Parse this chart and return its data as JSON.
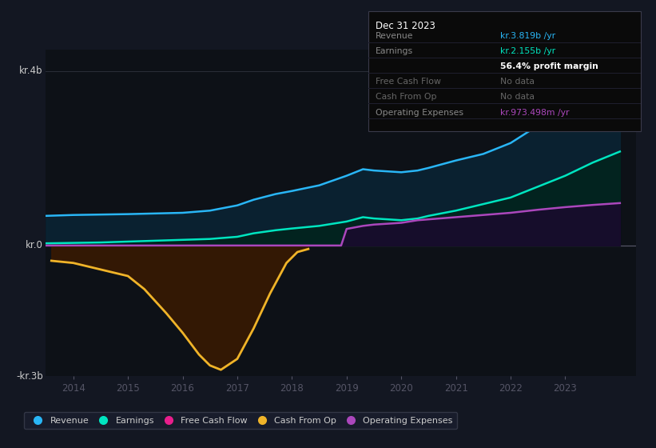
{
  "bg_color": "#131722",
  "plot_bg": "#0d1117",
  "grid_color": "#2a2e39",
  "ylim": [
    -3000000000.0,
    4500000000.0
  ],
  "xlim": [
    2013.5,
    2024.3
  ],
  "xticks": [
    2014,
    2015,
    2016,
    2017,
    2018,
    2019,
    2020,
    2021,
    2022,
    2023
  ],
  "revenue": {
    "years": [
      2013.5,
      2014.0,
      2014.5,
      2015.0,
      2015.5,
      2016.0,
      2016.5,
      2017.0,
      2017.3,
      2017.7,
      2018.0,
      2018.5,
      2019.0,
      2019.3,
      2019.5,
      2020.0,
      2020.3,
      2020.5,
      2021.0,
      2021.5,
      2022.0,
      2022.5,
      2023.0,
      2023.5,
      2024.0
    ],
    "values": [
      680000000.0,
      700000000.0,
      710000000.0,
      720000000.0,
      735000000.0,
      750000000.0,
      800000000.0,
      920000000.0,
      1050000000.0,
      1180000000.0,
      1250000000.0,
      1380000000.0,
      1600000000.0,
      1750000000.0,
      1720000000.0,
      1680000000.0,
      1720000000.0,
      1780000000.0,
      1950000000.0,
      2100000000.0,
      2350000000.0,
      2750000000.0,
      3100000000.0,
      3600000000.0,
      3819000000.0
    ],
    "color": "#29b6f6",
    "fill_color": "#0a2535",
    "fill_alpha": 0.85,
    "lw": 1.8
  },
  "earnings": {
    "years": [
      2013.5,
      2014.0,
      2014.5,
      2015.0,
      2015.5,
      2016.0,
      2016.5,
      2017.0,
      2017.3,
      2017.7,
      2018.0,
      2018.5,
      2019.0,
      2019.3,
      2019.5,
      2020.0,
      2020.3,
      2020.5,
      2021.0,
      2021.5,
      2022.0,
      2022.5,
      2023.0,
      2023.5,
      2024.0
    ],
    "values": [
      50000000.0,
      60000000.0,
      70000000.0,
      90000000.0,
      110000000.0,
      130000000.0,
      150000000.0,
      200000000.0,
      280000000.0,
      350000000.0,
      390000000.0,
      450000000.0,
      550000000.0,
      650000000.0,
      620000000.0,
      580000000.0,
      620000000.0,
      680000000.0,
      800000000.0,
      950000000.0,
      1100000000.0,
      1350000000.0,
      1600000000.0,
      1900000000.0,
      2155000000.0
    ],
    "color": "#00e5c0",
    "fill_color": "#00251a",
    "fill_alpha": 0.75,
    "lw": 1.8
  },
  "cashfromop": {
    "years": [
      2013.6,
      2014.0,
      2014.5,
      2015.0,
      2015.3,
      2015.7,
      2016.0,
      2016.3,
      2016.5,
      2016.7,
      2017.0,
      2017.3,
      2017.6,
      2017.9,
      2018.1,
      2018.3
    ],
    "values": [
      -350000000.0,
      -400000000.0,
      -550000000.0,
      -700000000.0,
      -1000000000.0,
      -1550000000.0,
      -2000000000.0,
      -2500000000.0,
      -2750000000.0,
      -2850000000.0,
      -2600000000.0,
      -1900000000.0,
      -1100000000.0,
      -400000000.0,
      -150000000.0,
      -80000000.0
    ],
    "color": "#f0b429",
    "fill_color": "#3d1a00",
    "fill_alpha": 0.8,
    "lw": 2.0
  },
  "opex": {
    "years": [
      2013.5,
      2014.0,
      2014.5,
      2015.0,
      2015.5,
      2016.0,
      2016.5,
      2017.0,
      2017.5,
      2018.0,
      2018.5,
      2018.9,
      2019.0,
      2019.3,
      2019.5,
      2020.0,
      2020.3,
      2020.5,
      2021.0,
      2021.5,
      2022.0,
      2022.5,
      2023.0,
      2023.5,
      2024.0
    ],
    "values": [
      0,
      0,
      0,
      0,
      0,
      0,
      0,
      0,
      0,
      0,
      0,
      0,
      380000000.0,
      450000000.0,
      480000000.0,
      520000000.0,
      580000000.0,
      600000000.0,
      650000000.0,
      700000000.0,
      750000000.0,
      820000000.0,
      880000000.0,
      930000000.0,
      973000000.0
    ],
    "color": "#ab47bc",
    "fill_color": "#1a0a2e",
    "fill_alpha": 0.85,
    "lw": 1.8
  },
  "legend": [
    {
      "label": "Revenue",
      "color": "#29b6f6"
    },
    {
      "label": "Earnings",
      "color": "#00e5c0"
    },
    {
      "label": "Free Cash Flow",
      "color": "#e91e8c"
    },
    {
      "label": "Cash From Op",
      "color": "#f0b429"
    },
    {
      "label": "Operating Expenses",
      "color": "#ab47bc"
    }
  ],
  "infobox": {
    "title": "Dec 31 2023",
    "rows": [
      {
        "label": "Revenue",
        "value": "kr.3.819b /yr",
        "label_color": "#888888",
        "value_color": "#29b6f6",
        "bold_value": false
      },
      {
        "label": "Earnings",
        "value": "kr.2.155b /yr",
        "label_color": "#888888",
        "value_color": "#00e5c0",
        "bold_value": false
      },
      {
        "label": "",
        "value": "56.4% profit margin",
        "label_color": "#888888",
        "value_color": "#ffffff",
        "bold_value": true
      },
      {
        "label": "Free Cash Flow",
        "value": "No data",
        "label_color": "#666666",
        "value_color": "#666666",
        "bold_value": false
      },
      {
        "label": "Cash From Op",
        "value": "No data",
        "label_color": "#666666",
        "value_color": "#666666",
        "bold_value": false
      },
      {
        "label": "Operating Expenses",
        "value": "kr.973.498m /yr",
        "label_color": "#888888",
        "value_color": "#ab47bc",
        "bold_value": false
      }
    ]
  }
}
